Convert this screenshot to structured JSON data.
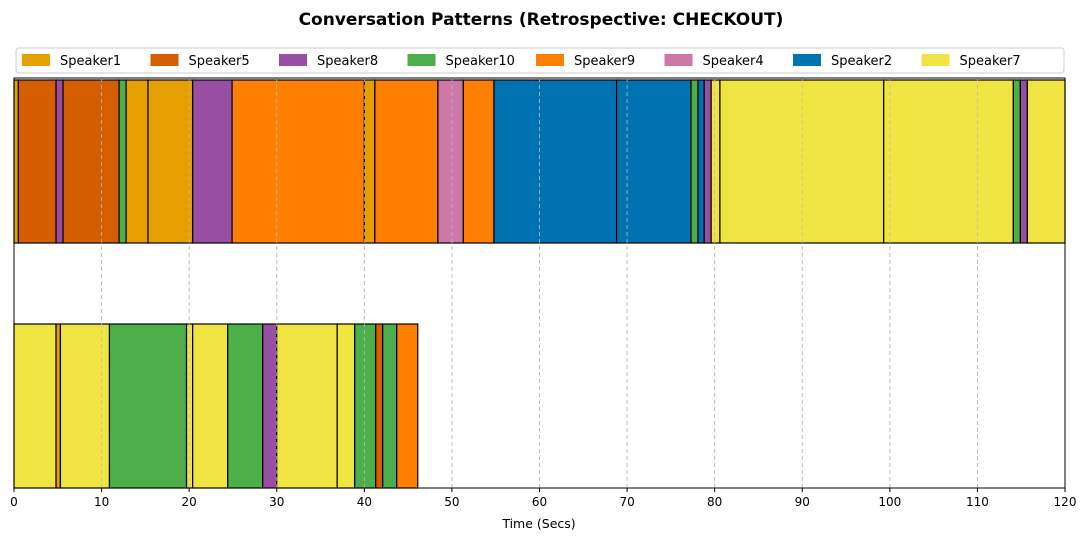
{
  "chart_data": {
    "type": "bar",
    "orientation": "horizontal-timeline",
    "title": "Conversation Patterns (Retrospective: CHECKOUT)",
    "xlabel": "Time (Secs)",
    "ylabel": "",
    "xlim": [
      0,
      120
    ],
    "xticks": [
      0,
      10,
      20,
      30,
      40,
      50,
      60,
      70,
      80,
      90,
      100,
      110,
      120
    ],
    "grid": "vertical-dashed",
    "legend_position": "top",
    "legend": [
      {
        "name": "Speaker1",
        "color": "#E69F00"
      },
      {
        "name": "Speaker5",
        "color": "#D55E00"
      },
      {
        "name": "Speaker8",
        "color": "#984EA3"
      },
      {
        "name": "Speaker10",
        "color": "#4DAF4A"
      },
      {
        "name": "Speaker9",
        "color": "#FF7F00"
      },
      {
        "name": "Speaker4",
        "color": "#CC79A7"
      },
      {
        "name": "Speaker2",
        "color": "#0072B2"
      },
      {
        "name": "Speaker7",
        "color": "#F0E442"
      }
    ],
    "rows": [
      {
        "segments": [
          {
            "speaker": "Speaker1",
            "start": 0,
            "end": 0.5
          },
          {
            "speaker": "Speaker5",
            "start": 0.5,
            "end": 4.8
          },
          {
            "speaker": "Speaker8",
            "start": 4.8,
            "end": 5.6
          },
          {
            "speaker": "Speaker5",
            "start": 5.6,
            "end": 12.0
          },
          {
            "speaker": "Speaker10",
            "start": 12.0,
            "end": 12.8
          },
          {
            "speaker": "Speaker1",
            "start": 12.8,
            "end": 15.3
          },
          {
            "speaker": "Speaker1",
            "start": 15.3,
            "end": 20.4
          },
          {
            "speaker": "Speaker8",
            "start": 20.4,
            "end": 24.9
          },
          {
            "speaker": "Speaker9",
            "start": 24.9,
            "end": 40.0
          },
          {
            "speaker": "Speaker1",
            "start": 40.0,
            "end": 41.2
          },
          {
            "speaker": "Speaker9",
            "start": 41.2,
            "end": 48.4
          },
          {
            "speaker": "Speaker4",
            "start": 48.4,
            "end": 51.3
          },
          {
            "speaker": "Speaker9",
            "start": 51.3,
            "end": 54.8
          },
          {
            "speaker": "Speaker2",
            "start": 54.8,
            "end": 68.8
          },
          {
            "speaker": "Speaker2",
            "start": 68.8,
            "end": 77.3
          },
          {
            "speaker": "Speaker10",
            "start": 77.3,
            "end": 78.1
          },
          {
            "speaker": "Speaker2",
            "start": 78.1,
            "end": 78.8
          },
          {
            "speaker": "Speaker8",
            "start": 78.8,
            "end": 79.6
          },
          {
            "speaker": "Speaker7",
            "start": 79.6,
            "end": 80.6
          },
          {
            "speaker": "Speaker7",
            "start": 80.6,
            "end": 99.3
          },
          {
            "speaker": "Speaker7",
            "start": 99.3,
            "end": 114.1
          },
          {
            "speaker": "Speaker10",
            "start": 114.1,
            "end": 114.9
          },
          {
            "speaker": "Speaker8",
            "start": 114.9,
            "end": 115.7
          },
          {
            "speaker": "Speaker7",
            "start": 115.7,
            "end": 120.0
          }
        ]
      },
      {
        "segments": [
          {
            "speaker": "Speaker7",
            "start": 0,
            "end": 4.8
          },
          {
            "speaker": "Speaker1",
            "start": 4.8,
            "end": 5.3
          },
          {
            "speaker": "Speaker7",
            "start": 5.3,
            "end": 10.9
          },
          {
            "speaker": "Speaker10",
            "start": 10.9,
            "end": 19.7
          },
          {
            "speaker": "Speaker7",
            "start": 19.7,
            "end": 20.4
          },
          {
            "speaker": "Speaker7",
            "start": 20.4,
            "end": 24.4
          },
          {
            "speaker": "Speaker10",
            "start": 24.4,
            "end": 28.4
          },
          {
            "speaker": "Speaker8",
            "start": 28.4,
            "end": 30.0
          },
          {
            "speaker": "Speaker7",
            "start": 30.0,
            "end": 36.9
          },
          {
            "speaker": "Speaker7",
            "start": 36.9,
            "end": 38.9
          },
          {
            "speaker": "Speaker10",
            "start": 38.9,
            "end": 41.3
          },
          {
            "speaker": "Speaker5",
            "start": 41.3,
            "end": 42.1
          },
          {
            "speaker": "Speaker10",
            "start": 42.1,
            "end": 43.7
          },
          {
            "speaker": "Speaker9",
            "start": 43.7,
            "end": 46.1
          }
        ]
      }
    ]
  }
}
